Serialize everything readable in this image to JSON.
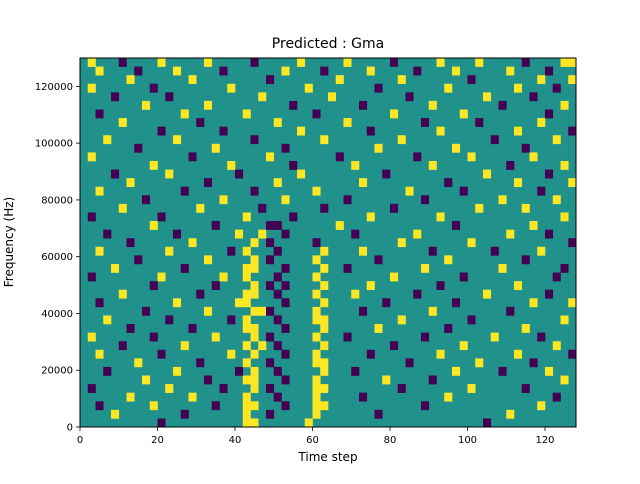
{
  "chart_data": {
    "type": "heatmap",
    "title": "Predicted : Gma",
    "xlabel": "Time step",
    "ylabel": "Frequency (Hz)",
    "xlim": [
      0,
      128
    ],
    "ylim": [
      0,
      130000
    ],
    "xticks": [
      0,
      20,
      40,
      60,
      80,
      100,
      120
    ],
    "yticks": [
      0,
      20000,
      40000,
      60000,
      80000,
      100000,
      120000
    ],
    "colormap": "viridis",
    "colors": {
      "background": "#21918c",
      "frame": "#000000"
    },
    "value_colors": {
      "1": "#fde725",
      "2": "#440154"
    },
    "grid": {
      "cols": 64,
      "rows": 43,
      "col_span_timesteps": 2,
      "row_span_hz": 3000
    },
    "cells": [
      [
        10,
        0,
        2
      ],
      [
        21,
        0,
        1
      ],
      [
        22,
        0,
        1
      ],
      [
        29,
        0,
        1
      ],
      [
        52,
        0,
        2
      ],
      [
        4,
        1,
        1
      ],
      [
        13,
        1,
        2
      ],
      [
        21,
        1,
        1
      ],
      [
        24,
        1,
        2
      ],
      [
        30,
        1,
        1
      ],
      [
        38,
        1,
        2
      ],
      [
        55,
        1,
        1
      ],
      [
        2,
        2,
        2
      ],
      [
        9,
        2,
        1
      ],
      [
        17,
        2,
        2
      ],
      [
        21,
        2,
        1
      ],
      [
        22,
        2,
        1
      ],
      [
        26,
        2,
        2
      ],
      [
        30,
        2,
        1
      ],
      [
        31,
        2,
        1
      ],
      [
        44,
        2,
        2
      ],
      [
        59,
        2,
        1
      ],
      [
        6,
        3,
        1
      ],
      [
        14,
        3,
        1
      ],
      [
        21,
        3,
        1
      ],
      [
        25,
        3,
        2
      ],
      [
        30,
        3,
        1
      ],
      [
        36,
        3,
        2
      ],
      [
        47,
        3,
        1
      ],
      [
        61,
        3,
        2
      ],
      [
        1,
        4,
        2
      ],
      [
        11,
        4,
        1
      ],
      [
        18,
        4,
        2
      ],
      [
        22,
        4,
        1
      ],
      [
        24,
        4,
        2
      ],
      [
        30,
        4,
        1
      ],
      [
        31,
        4,
        1
      ],
      [
        41,
        4,
        2
      ],
      [
        50,
        4,
        1
      ],
      [
        57,
        4,
        2
      ],
      [
        8,
        5,
        1
      ],
      [
        16,
        5,
        2
      ],
      [
        21,
        5,
        1
      ],
      [
        22,
        5,
        1
      ],
      [
        26,
        5,
        2
      ],
      [
        30,
        5,
        1
      ],
      [
        39,
        5,
        1
      ],
      [
        45,
        5,
        2
      ],
      [
        62,
        5,
        1
      ],
      [
        3,
        6,
        2
      ],
      [
        12,
        6,
        1
      ],
      [
        20,
        6,
        2
      ],
      [
        22,
        6,
        1
      ],
      [
        25,
        6,
        2
      ],
      [
        31,
        6,
        1
      ],
      [
        35,
        6,
        2
      ],
      [
        48,
        6,
        1
      ],
      [
        54,
        6,
        2
      ],
      [
        60,
        6,
        1
      ],
      [
        7,
        7,
        1
      ],
      [
        15,
        7,
        2
      ],
      [
        21,
        7,
        1
      ],
      [
        24,
        7,
        2
      ],
      [
        30,
        7,
        1
      ],
      [
        31,
        7,
        1
      ],
      [
        42,
        7,
        2
      ],
      [
        51,
        7,
        1
      ],
      [
        58,
        7,
        2
      ],
      [
        2,
        8,
        1
      ],
      [
        10,
        8,
        2
      ],
      [
        19,
        8,
        1
      ],
      [
        22,
        8,
        1
      ],
      [
        26,
        8,
        2
      ],
      [
        30,
        8,
        1
      ],
      [
        37,
        8,
        2
      ],
      [
        46,
        8,
        1
      ],
      [
        56,
        8,
        1
      ],
      [
        63,
        8,
        2
      ],
      [
        5,
        9,
        2
      ],
      [
        13,
        9,
        1
      ],
      [
        21,
        9,
        1
      ],
      [
        23,
        9,
        1
      ],
      [
        25,
        9,
        2
      ],
      [
        31,
        9,
        1
      ],
      [
        40,
        9,
        2
      ],
      [
        49,
        9,
        1
      ],
      [
        61,
        9,
        1
      ],
      [
        1,
        10,
        1
      ],
      [
        9,
        10,
        2
      ],
      [
        17,
        10,
        1
      ],
      [
        22,
        10,
        1
      ],
      [
        24,
        10,
        2
      ],
      [
        30,
        10,
        1
      ],
      [
        34,
        10,
        2
      ],
      [
        44,
        10,
        2
      ],
      [
        53,
        10,
        1
      ],
      [
        59,
        10,
        2
      ],
      [
        6,
        11,
        2
      ],
      [
        14,
        11,
        2
      ],
      [
        21,
        11,
        1
      ],
      [
        22,
        11,
        1
      ],
      [
        26,
        11,
        2
      ],
      [
        31,
        11,
        1
      ],
      [
        38,
        11,
        1
      ],
      [
        47,
        11,
        2
      ],
      [
        57,
        11,
        1
      ],
      [
        3,
        12,
        1
      ],
      [
        11,
        12,
        2
      ],
      [
        19,
        12,
        2
      ],
      [
        21,
        12,
        1
      ],
      [
        25,
        12,
        2
      ],
      [
        30,
        12,
        1
      ],
      [
        31,
        12,
        1
      ],
      [
        41,
        12,
        1
      ],
      [
        50,
        12,
        2
      ],
      [
        62,
        12,
        1
      ],
      [
        8,
        13,
        2
      ],
      [
        16,
        13,
        1
      ],
      [
        22,
        13,
        1
      ],
      [
        23,
        13,
        1
      ],
      [
        24,
        13,
        2
      ],
      [
        30,
        13,
        1
      ],
      [
        36,
        13,
        2
      ],
      [
        45,
        13,
        1
      ],
      [
        55,
        13,
        2
      ],
      [
        2,
        14,
        2
      ],
      [
        12,
        14,
        1
      ],
      [
        20,
        14,
        1
      ],
      [
        21,
        14,
        1
      ],
      [
        26,
        14,
        2
      ],
      [
        31,
        14,
        1
      ],
      [
        39,
        14,
        2
      ],
      [
        48,
        14,
        2
      ],
      [
        58,
        14,
        1
      ],
      [
        63,
        14,
        1
      ],
      [
        5,
        15,
        1
      ],
      [
        15,
        15,
        2
      ],
      [
        21,
        15,
        1
      ],
      [
        22,
        15,
        1
      ],
      [
        25,
        15,
        2
      ],
      [
        30,
        15,
        1
      ],
      [
        35,
        15,
        1
      ],
      [
        43,
        15,
        2
      ],
      [
        52,
        15,
        1
      ],
      [
        60,
        15,
        2
      ],
      [
        9,
        16,
        2
      ],
      [
        17,
        16,
        2
      ],
      [
        22,
        16,
        1
      ],
      [
        24,
        16,
        2
      ],
      [
        26,
        16,
        2
      ],
      [
        31,
        16,
        1
      ],
      [
        37,
        16,
        1
      ],
      [
        46,
        16,
        2
      ],
      [
        56,
        16,
        1
      ],
      [
        1,
        17,
        2
      ],
      [
        10,
        17,
        1
      ],
      [
        18,
        17,
        1
      ],
      [
        21,
        17,
        1
      ],
      [
        25,
        17,
        2
      ],
      [
        30,
        17,
        1
      ],
      [
        40,
        17,
        1
      ],
      [
        49,
        17,
        2
      ],
      [
        61,
        17,
        2
      ],
      [
        4,
        18,
        1
      ],
      [
        13,
        18,
        2
      ],
      [
        21,
        18,
        1
      ],
      [
        22,
        18,
        1
      ],
      [
        26,
        18,
        2
      ],
      [
        31,
        18,
        1
      ],
      [
        34,
        18,
        2
      ],
      [
        44,
        18,
        1
      ],
      [
        54,
        18,
        1
      ],
      [
        62,
        18,
        2
      ],
      [
        7,
        19,
        2
      ],
      [
        16,
        19,
        1
      ],
      [
        22,
        19,
        1
      ],
      [
        24,
        19,
        2
      ],
      [
        30,
        19,
        1
      ],
      [
        38,
        19,
        2
      ],
      [
        47,
        19,
        1
      ],
      [
        57,
        19,
        2
      ],
      [
        2,
        20,
        1
      ],
      [
        11,
        20,
        1
      ],
      [
        19,
        20,
        2
      ],
      [
        21,
        20,
        1
      ],
      [
        25,
        20,
        2
      ],
      [
        31,
        20,
        1
      ],
      [
        36,
        20,
        1
      ],
      [
        45,
        20,
        2
      ],
      [
        53,
        20,
        2
      ],
      [
        59,
        20,
        1
      ],
      [
        6,
        21,
        2
      ],
      [
        14,
        21,
        1
      ],
      [
        22,
        21,
        1
      ],
      [
        24,
        21,
        2
      ],
      [
        30,
        21,
        2
      ],
      [
        41,
        21,
        1
      ],
      [
        50,
        21,
        1
      ],
      [
        63,
        21,
        2
      ],
      [
        3,
        22,
        2
      ],
      [
        12,
        22,
        2
      ],
      [
        20,
        22,
        1
      ],
      [
        23,
        22,
        1
      ],
      [
        26,
        22,
        2
      ],
      [
        35,
        22,
        2
      ],
      [
        43,
        22,
        1
      ],
      [
        55,
        22,
        1
      ],
      [
        60,
        22,
        2
      ],
      [
        9,
        23,
        1
      ],
      [
        17,
        23,
        2
      ],
      [
        24,
        23,
        2
      ],
      [
        25,
        23,
        2
      ],
      [
        33,
        23,
        1
      ],
      [
        48,
        23,
        2
      ],
      [
        58,
        23,
        1
      ],
      [
        1,
        24,
        2
      ],
      [
        10,
        24,
        2
      ],
      [
        21,
        24,
        1
      ],
      [
        27,
        24,
        2
      ],
      [
        37,
        24,
        1
      ],
      [
        46,
        24,
        1
      ],
      [
        62,
        24,
        1
      ],
      [
        5,
        25,
        1
      ],
      [
        15,
        25,
        1
      ],
      [
        23,
        25,
        2
      ],
      [
        31,
        25,
        2
      ],
      [
        40,
        25,
        2
      ],
      [
        51,
        25,
        1
      ],
      [
        57,
        25,
        1
      ],
      [
        8,
        26,
        2
      ],
      [
        18,
        26,
        1
      ],
      [
        26,
        26,
        1
      ],
      [
        34,
        26,
        2
      ],
      [
        44,
        26,
        2
      ],
      [
        54,
        26,
        1
      ],
      [
        61,
        26,
        1
      ],
      [
        2,
        27,
        1
      ],
      [
        13,
        27,
        2
      ],
      [
        22,
        27,
        2
      ],
      [
        30,
        27,
        1
      ],
      [
        42,
        27,
        1
      ],
      [
        49,
        27,
        2
      ],
      [
        59,
        27,
        2
      ],
      [
        6,
        28,
        1
      ],
      [
        16,
        28,
        2
      ],
      [
        25,
        28,
        1
      ],
      [
        36,
        28,
        1
      ],
      [
        47,
        28,
        2
      ],
      [
        56,
        28,
        1
      ],
      [
        63,
        28,
        1
      ],
      [
        4,
        29,
        2
      ],
      [
        11,
        29,
        1
      ],
      [
        20,
        29,
        2
      ],
      [
        28,
        29,
        1
      ],
      [
        39,
        29,
        2
      ],
      [
        52,
        29,
        1
      ],
      [
        60,
        29,
        2
      ],
      [
        9,
        30,
        1
      ],
      [
        19,
        30,
        1
      ],
      [
        27,
        30,
        2
      ],
      [
        35,
        30,
        1
      ],
      [
        45,
        30,
        1
      ],
      [
        55,
        30,
        2
      ],
      [
        62,
        30,
        1
      ],
      [
        1,
        31,
        1
      ],
      [
        14,
        31,
        2
      ],
      [
        24,
        31,
        1
      ],
      [
        33,
        31,
        2
      ],
      [
        43,
        31,
        2
      ],
      [
        50,
        31,
        1
      ],
      [
        58,
        31,
        1
      ],
      [
        7,
        32,
        2
      ],
      [
        17,
        32,
        1
      ],
      [
        26,
        32,
        2
      ],
      [
        38,
        32,
        1
      ],
      [
        48,
        32,
        1
      ],
      [
        57,
        32,
        2
      ],
      [
        3,
        33,
        1
      ],
      [
        12,
        33,
        1
      ],
      [
        22,
        33,
        2
      ],
      [
        31,
        33,
        1
      ],
      [
        41,
        33,
        1
      ],
      [
        53,
        33,
        2
      ],
      [
        61,
        33,
        1
      ],
      [
        10,
        34,
        2
      ],
      [
        18,
        34,
        2
      ],
      [
        28,
        34,
        1
      ],
      [
        37,
        34,
        2
      ],
      [
        46,
        34,
        1
      ],
      [
        56,
        34,
        1
      ],
      [
        63,
        34,
        2
      ],
      [
        5,
        35,
        1
      ],
      [
        15,
        35,
        2
      ],
      [
        25,
        35,
        1
      ],
      [
        34,
        35,
        1
      ],
      [
        44,
        35,
        2
      ],
      [
        51,
        35,
        2
      ],
      [
        59,
        35,
        1
      ],
      [
        2,
        36,
        2
      ],
      [
        13,
        36,
        1
      ],
      [
        21,
        36,
        1
      ],
      [
        30,
        36,
        2
      ],
      [
        40,
        36,
        1
      ],
      [
        49,
        36,
        1
      ],
      [
        60,
        36,
        2
      ],
      [
        8,
        37,
        1
      ],
      [
        16,
        37,
        1
      ],
      [
        27,
        37,
        2
      ],
      [
        36,
        37,
        2
      ],
      [
        45,
        37,
        1
      ],
      [
        54,
        37,
        2
      ],
      [
        62,
        37,
        1
      ],
      [
        4,
        38,
        2
      ],
      [
        11,
        38,
        2
      ],
      [
        23,
        38,
        1
      ],
      [
        32,
        38,
        1
      ],
      [
        42,
        38,
        2
      ],
      [
        52,
        38,
        1
      ],
      [
        58,
        38,
        2
      ],
      [
        1,
        39,
        1
      ],
      [
        9,
        39,
        2
      ],
      [
        19,
        39,
        1
      ],
      [
        29,
        39,
        1
      ],
      [
        38,
        39,
        2
      ],
      [
        47,
        39,
        1
      ],
      [
        56,
        39,
        1
      ],
      [
        61,
        39,
        2
      ],
      [
        6,
        40,
        1
      ],
      [
        14,
        40,
        1
      ],
      [
        24,
        40,
        2
      ],
      [
        33,
        40,
        1
      ],
      [
        41,
        40,
        1
      ],
      [
        50,
        40,
        2
      ],
      [
        59,
        40,
        1
      ],
      [
        63,
        40,
        1
      ],
      [
        2,
        41,
        1
      ],
      [
        7,
        41,
        2
      ],
      [
        12,
        41,
        1
      ],
      [
        18,
        41,
        2
      ],
      [
        26,
        41,
        1
      ],
      [
        31,
        41,
        2
      ],
      [
        37,
        41,
        1
      ],
      [
        43,
        41,
        2
      ],
      [
        48,
        41,
        1
      ],
      [
        55,
        41,
        1
      ],
      [
        60,
        41,
        2
      ],
      [
        1,
        42,
        1
      ],
      [
        5,
        42,
        2
      ],
      [
        10,
        42,
        1
      ],
      [
        16,
        42,
        1
      ],
      [
        22,
        42,
        2
      ],
      [
        28,
        42,
        1
      ],
      [
        34,
        42,
        1
      ],
      [
        40,
        42,
        2
      ],
      [
        46,
        42,
        1
      ],
      [
        51,
        42,
        1
      ],
      [
        57,
        42,
        2
      ],
      [
        62,
        42,
        1
      ],
      [
        63,
        42,
        1
      ]
    ]
  }
}
